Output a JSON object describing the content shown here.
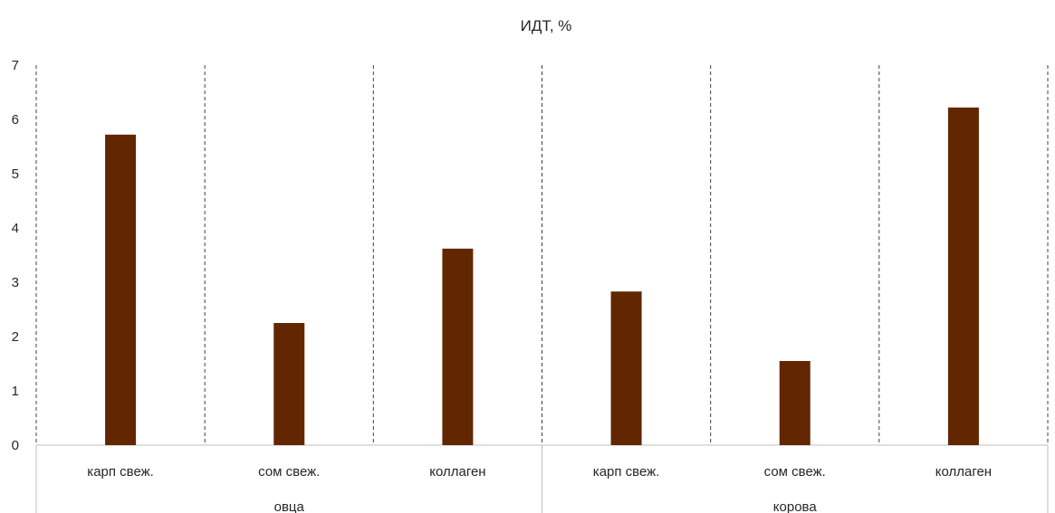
{
  "chart_data": {
    "type": "bar",
    "title": "ИДТ, %",
    "xlabel": "",
    "ylabel": "",
    "ylim": [
      0,
      7
    ],
    "yticks": [
      0,
      1,
      2,
      3,
      4,
      5,
      6,
      7
    ],
    "groups": [
      {
        "label": "овца",
        "categories": [
          "карп свеж.",
          "сом свеж.",
          "коллаген"
        ]
      },
      {
        "label": "корова",
        "categories": [
          "карп свеж.",
          "сом свеж.",
          "коллаген"
        ]
      }
    ],
    "categories": [
      "карп свеж.",
      "сом свеж.",
      "коллаген",
      "карп свеж.",
      "сом свеж.",
      "коллаген"
    ],
    "values": [
      5.72,
      2.25,
      3.62,
      2.83,
      1.55,
      6.22
    ],
    "bar_color": "#622700",
    "grid": false,
    "vertical_dividers": "dashed",
    "legend": "none"
  }
}
